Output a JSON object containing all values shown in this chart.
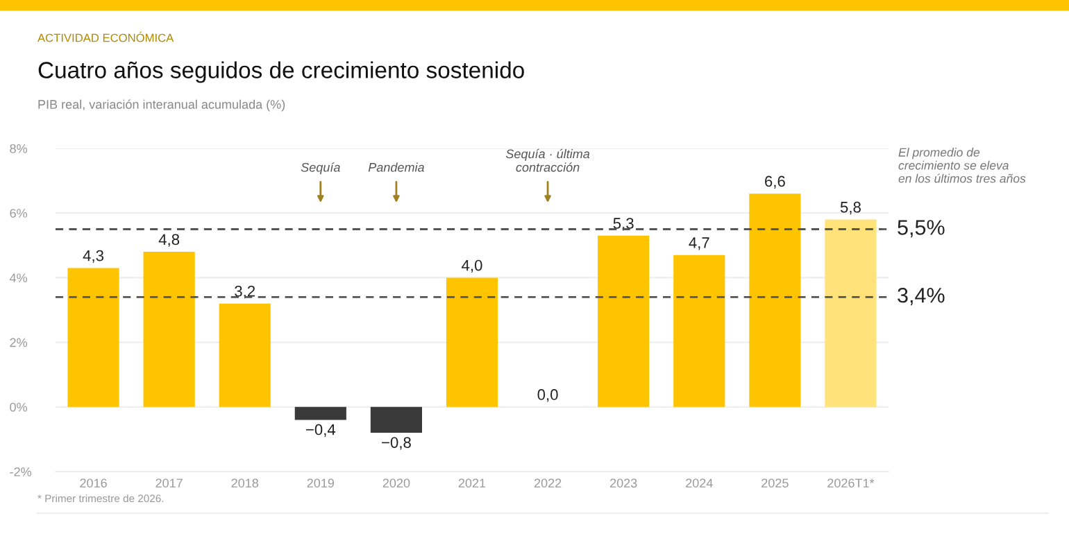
{
  "chart_data": {
    "type": "bar",
    "title": "Cuatro años seguidos de crecimiento sostenido",
    "subtitle": "PIB real, variación interanual acumulada (%)",
    "categories": [
      "2016",
      "2017",
      "2018",
      "2019",
      "2020",
      "2021",
      "2022",
      "2023",
      "2024",
      "2025",
      "2026T1*"
    ],
    "values": [
      4.3,
      4.8,
      3.2,
      -0.4,
      -0.8,
      4.0,
      0.0,
      5.3,
      4.7,
      6.6,
      5.8
    ],
    "colors": [
      "#ffc400",
      "#ffc400",
      "#ffc400",
      "#3a3a3a",
      "#3a3a3a",
      "#ffc400",
      "#ffc400",
      "#ffc400",
      "#ffc400",
      "#ffc400",
      "#ffe27a"
    ],
    "value_labels": [
      "4,3",
      "4,8",
      "3,2",
      "−0,4",
      "−0,8",
      "4,0",
      "0,0",
      "5,3",
      "4,7",
      "6,6",
      "5,8"
    ],
    "ylim": [
      -2,
      8
    ],
    "yticks": [
      {
        "value": -2,
        "label": "-2%"
      },
      {
        "value": 0,
        "label": "0%"
      },
      {
        "value": 2,
        "label": "2%"
      },
      {
        "value": 4,
        "label": "4%"
      },
      {
        "value": 6,
        "label": "6%"
      },
      {
        "value": 8,
        "label": "8%"
      }
    ],
    "ref_lines": [
      {
        "axis": "y",
        "value": 5.5,
        "label": "5,5%",
        "color": "#555555",
        "line_style": "dashed"
      },
      {
        "axis": "y",
        "value": 3.4,
        "label": "3,4%",
        "color": "#555555",
        "line_style": "dashed"
      }
    ],
    "annotations": [
      "ACTIVIDAD ECONÓMICA",
      "El promedio de\ncrecimiento se eleva\nen los últimos tres años",
      "* Primer trimestre de 2026.",
      "Sequía",
      "Pandemia",
      "Sequía · última\ncontracción"
    ],
    "grid": "y",
    "legend": false
  }
}
